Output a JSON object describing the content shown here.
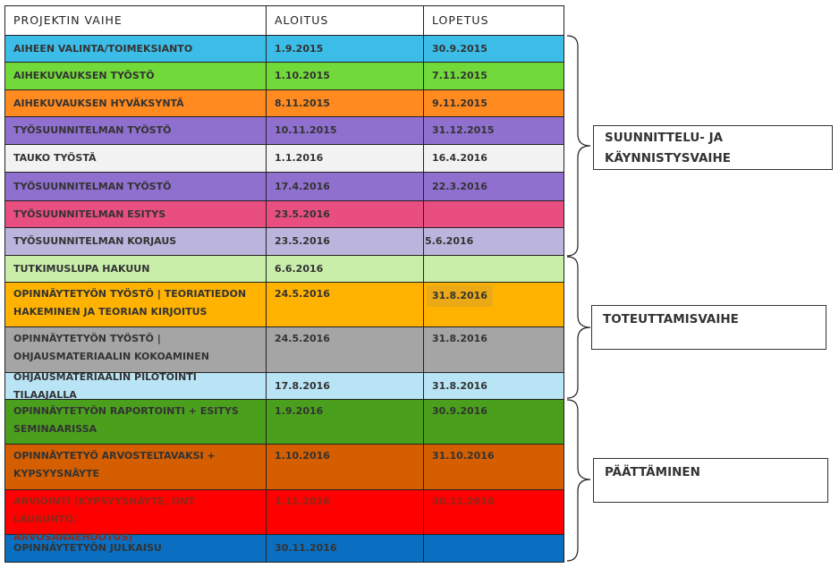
{
  "table": {
    "headers": [
      "PROJEKTIN VAIHE",
      "ALOITUS",
      "LOPETUS"
    ],
    "rows": [
      {
        "phase": "AIHEEN VALINTA/TOIMEKSIANTO",
        "start": "1.9.2015",
        "end": "30.9.2015",
        "color": "#3cbde8"
      },
      {
        "phase": "AIHEKUVAUKSEN TYÖSTÖ",
        "start": "1.10.2015",
        "end": "7.11.2015",
        "color": "#72d93a"
      },
      {
        "phase": "AIHEKUVAUKSEN HYVÄKSYNTÄ",
        "start": "8.11.2015",
        "end": "9.11.2015",
        "color": "#ff8a1f"
      },
      {
        "phase": "TYÖSUUNNITELMAN TYÖSTÖ",
        "start": "10.11.2015",
        "end": "31.12.2015",
        "color": "#9070cf"
      },
      {
        "phase": "TAUKO TYÖSTÄ",
        "start": "1.1.2016",
        "end": "16.4.2016",
        "color": "#f2f2f2"
      },
      {
        "phase": "TYÖSUUNNITELMAN TYÖSTÖ",
        "start": "17.4.2016",
        "end": "22.3.2016",
        "color": "#9070cf"
      },
      {
        "phase": "TYÖSUUNNITELMAN ESITYS",
        "start": "23.5.2016",
        "end": "",
        "color": "#e84f80"
      },
      {
        "phase": "TYÖSUUNNITELMAN KORJAUS",
        "start": "23.5.2016",
        "end": "5.6.2016",
        "color": "#bbb5dd"
      },
      {
        "phase": "TUTKIMUSLUPA HAKUUN",
        "start": "6.6.2016",
        "end": "",
        "color": "#c8eeaa"
      },
      {
        "phase_line1": "OPINNÄYTETYÖN TYÖSTÖ | TEORIATIEDON",
        "phase_line2": "HAKEMINEN JA TEORIAN KIRJOITUS",
        "start": "24.5.2016",
        "end": "31.8.2016",
        "color": "#ffb300"
      },
      {
        "phase_line1": "OPINNÄYTETYÖN TYÖSTÖ |",
        "phase_line2": "OHJAUSMATERIAALIN KOKOAMINEN",
        "start": "24.5.2016",
        "end": "31.8.2016",
        "color": "#a5a5a5"
      },
      {
        "phase": "OHJAUSMATERIAALIN PILOTOINTI TILAAJALLA",
        "start": "17.8.2016",
        "end": "31.8.2016",
        "color": "#b9e4f5"
      },
      {
        "phase_line1": "OPINNÄYTETYÖN RAPORTOINTI + ESITYS",
        "phase_line2": "SEMINAARISSA",
        "start": "1.9.2016",
        "end": "30.9.2016",
        "color": "#4aa01c"
      },
      {
        "phase_line1": "OPINNÄYTETYÖ ARVOSTELTAVAKSI +",
        "phase_line2": "KYPSYYSNÄYTE",
        "start": "1.10.2016",
        "end": "31.10.2016",
        "color": "#d45e00"
      },
      {
        "phase_line1": "ARVIOINTI (KYPSYYSNÄYTE, ONT LAUSUNTO,",
        "phase_line2": "ARVOSANAEHDOTUS)",
        "start": "1.11.2016",
        "end": "30.11.2016",
        "color": "#ff0000"
      },
      {
        "phase": "OPINNÄYTETYÖN JULKAISU",
        "start": "30.11.2016",
        "end": "",
        "color": "#0a6fc0"
      }
    ]
  },
  "phases": {
    "planning_line1": "SUUNNITTELU- JA",
    "planning_line2": "KÄYNNISTYSVAIHE",
    "implementation": "TOTEUTTAMISVAIHE",
    "closing": "PÄÄTTÄMINEN"
  }
}
